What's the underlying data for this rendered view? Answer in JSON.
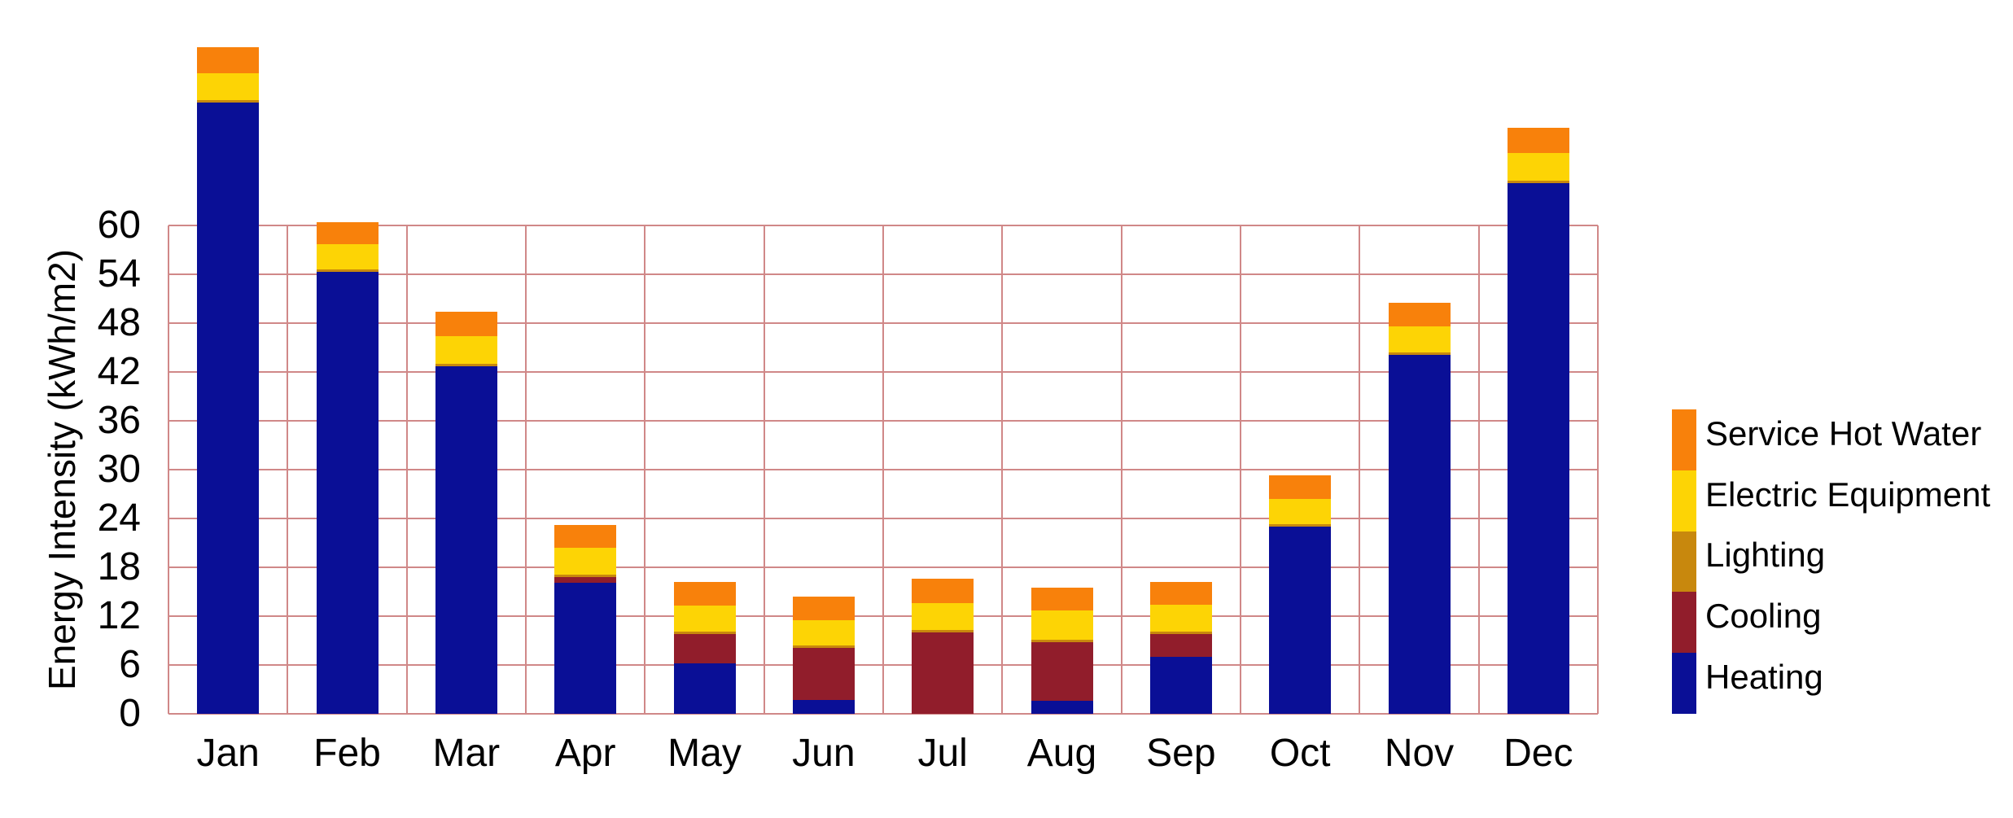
{
  "chart_data": {
    "type": "bar",
    "stacked": true,
    "title": "",
    "xlabel": "",
    "ylabel": "Energy Intensity (kWh/m2)",
    "categories": [
      "Jan",
      "Feb",
      "Mar",
      "Apr",
      "May",
      "Jun",
      "Jul",
      "Aug",
      "Sep",
      "Oct",
      "Nov",
      "Dec"
    ],
    "series": [
      {
        "name": "Heating",
        "color": "#0a0f96",
        "values": [
          75.1,
          54.3,
          42.7,
          16.1,
          6.2,
          1.7,
          0.0,
          1.6,
          7.0,
          23.0,
          44.1,
          65.2
        ]
      },
      {
        "name": "Cooling",
        "color": "#911d2b",
        "values": [
          0.0,
          0.0,
          0.0,
          0.7,
          3.6,
          6.4,
          10.0,
          7.2,
          2.8,
          0.0,
          0.0,
          0.0
        ]
      },
      {
        "name": "Lighting",
        "color": "#c8880d",
        "values": [
          0.3,
          0.3,
          0.3,
          0.3,
          0.3,
          0.3,
          0.3,
          0.3,
          0.3,
          0.3,
          0.3,
          0.3
        ]
      },
      {
        "name": "Electric Equipment",
        "color": "#fdd405",
        "values": [
          3.3,
          3.1,
          3.4,
          3.3,
          3.2,
          3.1,
          3.3,
          3.6,
          3.3,
          3.1,
          3.2,
          3.4
        ]
      },
      {
        "name": "Service Hot Water",
        "color": "#f8810b",
        "values": [
          3.2,
          2.7,
          3.0,
          2.8,
          2.9,
          2.9,
          3.0,
          2.8,
          2.8,
          2.9,
          2.9,
          3.1
        ]
      }
    ],
    "totals": [
      81.9,
      60.4,
      49.4,
      23.2,
      16.2,
      14.4,
      16.6,
      15.5,
      16.2,
      29.3,
      50.5,
      72.0
    ],
    "ylim": [
      0,
      60
    ],
    "y_tick_step": 6,
    "y_ticks": [
      "0",
      "6",
      "12",
      "18",
      "24",
      "30",
      "36",
      "42",
      "48",
      "54",
      "60"
    ],
    "grid": true,
    "gridline_color": "#d08888",
    "legend_position": "right",
    "legend_order_top_to_bottom": [
      "Service Hot Water",
      "Electric Equipment",
      "Lighting",
      "Cooling",
      "Heating"
    ]
  }
}
